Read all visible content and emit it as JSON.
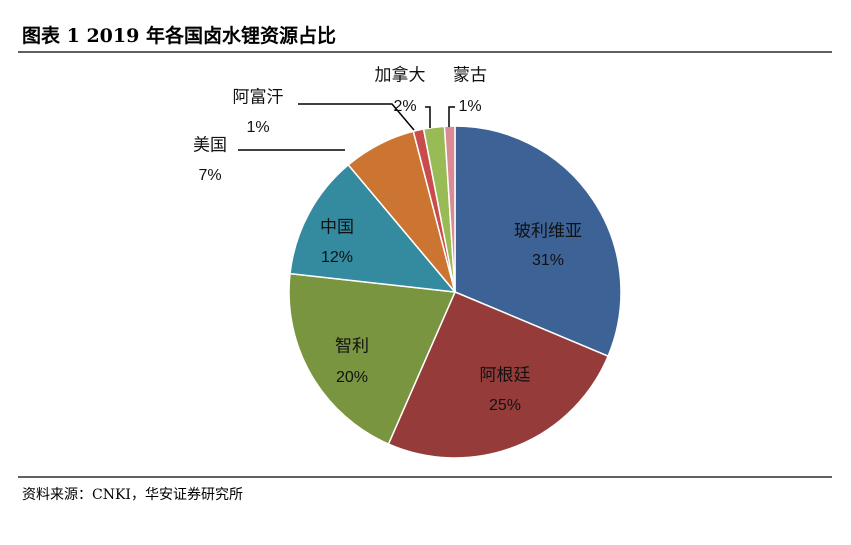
{
  "title": "图表 1 2019 年各国卤水锂资源占比",
  "source": "资料来源：CNKI，华安证券研究所",
  "chart_data": {
    "type": "pie",
    "categories": [
      "玻利维亚",
      "阿根廷",
      "智利",
      "中国",
      "美国",
      "阿富汗",
      "加拿大",
      "蒙古"
    ],
    "values": [
      31,
      25,
      20,
      12,
      7,
      1,
      2,
      1
    ],
    "value_labels": [
      "31%",
      "25%",
      "20%",
      "12%",
      "7%",
      "1%",
      "2%",
      "1%"
    ],
    "colors": [
      "#3c6296",
      "#953c3a",
      "#79953f",
      "#348a9e",
      "#cc7532",
      "#c94b4b",
      "#99bb55",
      "#d98a92"
    ]
  }
}
